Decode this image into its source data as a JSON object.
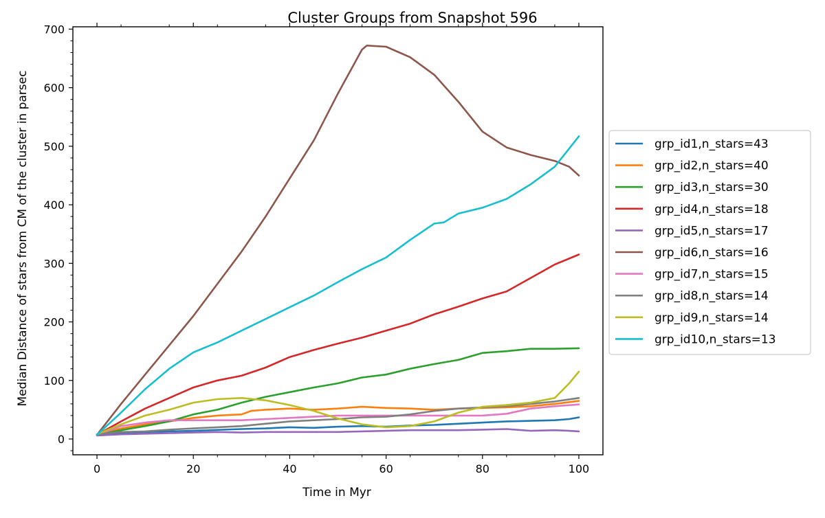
{
  "chart_data": {
    "type": "line",
    "title": "Cluster Groups from Snapshot 596",
    "xlabel": "Time in Myr",
    "ylabel": "Median Distance of stars from CM of the cluster in parsec",
    "xlim": [
      -5,
      105
    ],
    "ylim": [
      -27,
      704
    ],
    "xticks": [
      0,
      20,
      40,
      60,
      80,
      100
    ],
    "yticks": [
      0,
      100,
      200,
      300,
      400,
      500,
      600,
      700
    ],
    "grid": false,
    "legend_position": "right-outside",
    "series": [
      {
        "name": "grp_id1,n_stars=43",
        "color": "#1f77b4",
        "x": [
          0,
          10,
          20,
          30,
          35,
          40,
          45,
          50,
          55,
          60,
          65,
          70,
          75,
          80,
          85,
          90,
          95,
          98,
          100
        ],
        "y": [
          8,
          12,
          14,
          17,
          18,
          20,
          19,
          21,
          22,
          21,
          23,
          24,
          26,
          28,
          30,
          31,
          32,
          34,
          37
        ]
      },
      {
        "name": "grp_id2,n_stars=40",
        "color": "#ff7f0e",
        "x": [
          0,
          5,
          10,
          15,
          20,
          25,
          30,
          32,
          35,
          40,
          45,
          50,
          55,
          60,
          65,
          70,
          75,
          80,
          85,
          90,
          95,
          100
        ],
        "y": [
          7,
          18,
          25,
          30,
          36,
          40,
          42,
          48,
          50,
          52,
          50,
          52,
          55,
          53,
          52,
          50,
          52,
          53,
          54,
          56,
          60,
          65
        ]
      },
      {
        "name": "grp_id3,n_stars=30",
        "color": "#2ca02c",
        "x": [
          0,
          5,
          10,
          15,
          20,
          25,
          30,
          35,
          40,
          45,
          50,
          55,
          60,
          65,
          70,
          75,
          80,
          85,
          90,
          95,
          100
        ],
        "y": [
          7,
          15,
          22,
          30,
          42,
          50,
          62,
          72,
          80,
          88,
          95,
          105,
          110,
          120,
          128,
          135,
          147,
          150,
          154,
          154,
          155
        ]
      },
      {
        "name": "grp_id4,n_stars=18",
        "color": "#d62728",
        "x": [
          0,
          5,
          10,
          15,
          20,
          25,
          30,
          35,
          40,
          45,
          50,
          55,
          60,
          65,
          70,
          75,
          80,
          85,
          90,
          95,
          100
        ],
        "y": [
          7,
          30,
          52,
          70,
          88,
          100,
          108,
          122,
          140,
          152,
          163,
          173,
          185,
          197,
          213,
          226,
          240,
          252,
          275,
          298,
          315
        ]
      },
      {
        "name": "grp_id5,n_stars=17",
        "color": "#9467bd",
        "x": [
          0,
          5,
          10,
          15,
          20,
          25,
          30,
          35,
          40,
          45,
          50,
          55,
          60,
          65,
          70,
          75,
          80,
          85,
          90,
          95,
          98,
          100
        ],
        "y": [
          6,
          8,
          9,
          10,
          11,
          12,
          11,
          12,
          12,
          12,
          12,
          13,
          14,
          15,
          15,
          15,
          16,
          17,
          14,
          15,
          14,
          13
        ]
      },
      {
        "name": "grp_id6,n_stars=16",
        "color": "#8c564b",
        "x": [
          0,
          5,
          10,
          15,
          20,
          25,
          30,
          35,
          40,
          45,
          50,
          54,
          55,
          56,
          60,
          65,
          70,
          75,
          80,
          85,
          90,
          95,
          98,
          100
        ],
        "y": [
          7,
          60,
          110,
          160,
          210,
          265,
          320,
          380,
          445,
          510,
          590,
          650,
          665,
          672,
          670,
          652,
          622,
          576,
          525,
          498,
          485,
          475,
          465,
          450
        ]
      },
      {
        "name": "grp_id7,n_stars=15",
        "color": "#e377c2",
        "x": [
          0,
          5,
          10,
          15,
          20,
          25,
          30,
          35,
          40,
          45,
          50,
          55,
          60,
          65,
          70,
          75,
          80,
          85,
          90,
          95,
          100
        ],
        "y": [
          7,
          22,
          28,
          32,
          32,
          32,
          32,
          34,
          36,
          38,
          40,
          40,
          40,
          40,
          40,
          40,
          40,
          43,
          52,
          56,
          59
        ]
      },
      {
        "name": "grp_id8,n_stars=14",
        "color": "#7f7f7f",
        "x": [
          0,
          5,
          10,
          15,
          20,
          25,
          30,
          35,
          40,
          45,
          50,
          55,
          60,
          65,
          70,
          75,
          80,
          85,
          90,
          95,
          100
        ],
        "y": [
          8,
          12,
          13,
          16,
          18,
          20,
          22,
          26,
          30,
          32,
          34,
          37,
          38,
          42,
          48,
          52,
          54,
          56,
          60,
          64,
          70
        ]
      },
      {
        "name": "grp_id9,n_stars=14",
        "color": "#bcbd22",
        "x": [
          0,
          5,
          10,
          15,
          20,
          25,
          30,
          35,
          40,
          45,
          50,
          55,
          60,
          65,
          70,
          75,
          80,
          85,
          90,
          95,
          98,
          100
        ],
        "y": [
          8,
          25,
          40,
          50,
          62,
          68,
          70,
          66,
          58,
          48,
          35,
          25,
          20,
          22,
          30,
          45,
          55,
          58,
          62,
          70,
          95,
          115
        ]
      },
      {
        "name": "grp_id10,n_stars=13",
        "color": "#17becf",
        "x": [
          0,
          5,
          10,
          15,
          20,
          25,
          30,
          35,
          40,
          45,
          50,
          55,
          60,
          65,
          70,
          72,
          75,
          80,
          85,
          90,
          95,
          100
        ],
        "y": [
          7,
          45,
          85,
          120,
          148,
          165,
          185,
          205,
          225,
          245,
          268,
          290,
          310,
          340,
          368,
          370,
          385,
          395,
          410,
          435,
          465,
          517
        ]
      }
    ]
  }
}
